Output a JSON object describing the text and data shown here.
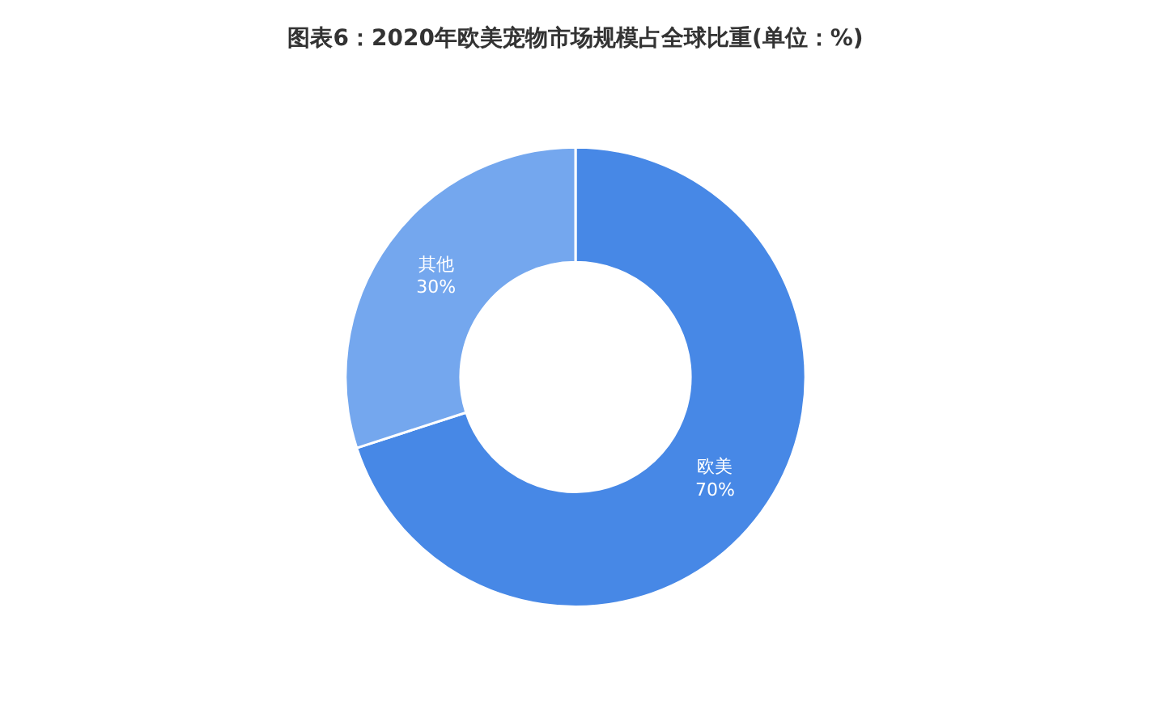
{
  "chart_data": {
    "type": "donut",
    "title": "图表6：2020年欧美宠物市场规模占全球比重(单位：%)",
    "categories": [
      "欧美",
      "其他"
    ],
    "values": [
      70,
      30
    ],
    "value_labels": [
      "70%",
      "30%"
    ],
    "colors": [
      "#4788e6",
      "#74a7ee"
    ],
    "legend": false
  }
}
